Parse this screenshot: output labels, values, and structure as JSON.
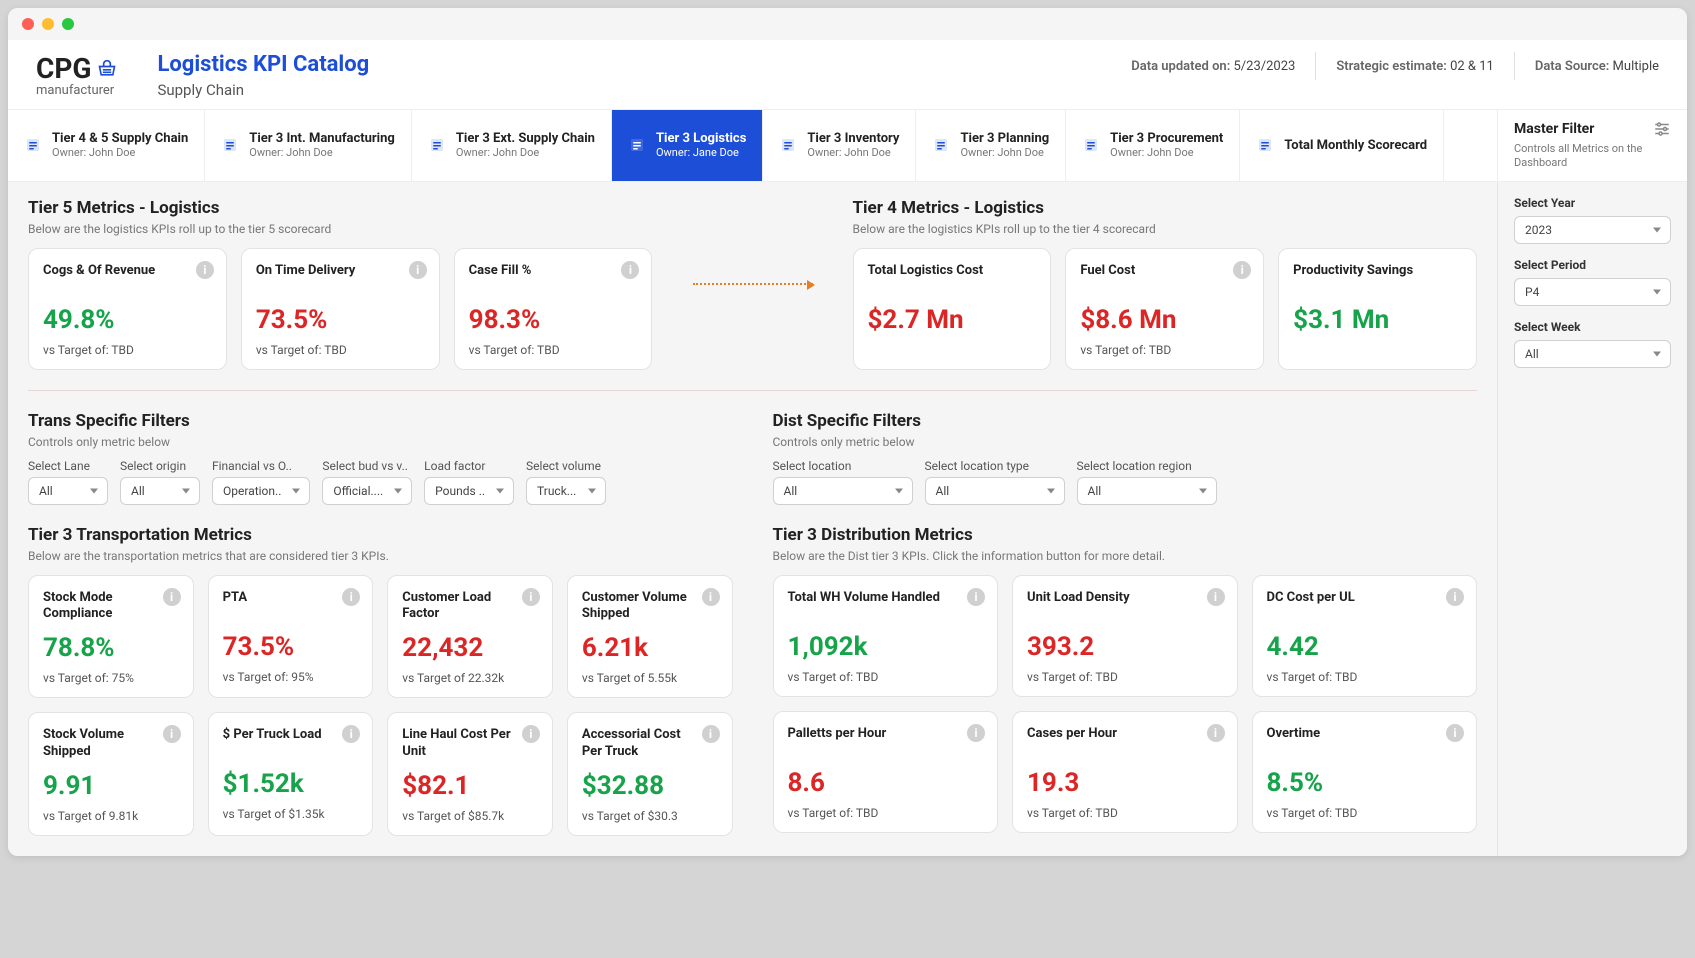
{
  "brand": {
    "name": "CPG",
    "sub": "manufacturer"
  },
  "header": {
    "title": "Logistics KPI Catalog",
    "subtitle": "Supply Chain",
    "updated_label": "Data updated on:",
    "updated_value": "5/23/2023",
    "estimate_label": "Strategic estimate:",
    "estimate_value": "02 & 11",
    "source_label": "Data Source:",
    "source_value": "Multiple"
  },
  "tabs": [
    {
      "label": "Tier 4 & 5 Supply Chain",
      "owner": "Owner: John Doe"
    },
    {
      "label": "Tier 3 Int. Manufacturing",
      "owner": "Owner: John Doe"
    },
    {
      "label": "Tier 3 Ext. Supply Chain",
      "owner": "Owner: John Doe"
    },
    {
      "label": "Tier 3 Logistics",
      "owner": "Owner: Jane Doe",
      "active": true
    },
    {
      "label": "Tier 3 Inventory",
      "owner": "Owner: John Doe"
    },
    {
      "label": "Tier 3 Planning",
      "owner": "Owner: John Doe"
    },
    {
      "label": "Tier 3 Procurement",
      "owner": "Owner: John Doe"
    },
    {
      "label": "Total Monthly Scorecard",
      "owner": ""
    }
  ],
  "master_filter": {
    "title": "Master Filter",
    "sub": "Controls all Metrics on the Dashboard",
    "year_label": "Select Year",
    "year_value": "2023",
    "period_label": "Select Period",
    "period_value": "P4",
    "week_label": "Select Week",
    "week_value": "All"
  },
  "tier5": {
    "title": "Tier 5 Metrics - Logistics",
    "sub": "Below are the logistics KPIs roll up to the tier 5 scorecard",
    "cards": [
      {
        "title": "Cogs & Of Revenue",
        "value": "49.8%",
        "color": "green",
        "sub": "vs Target of: TBD"
      },
      {
        "title": "On Time Delivery",
        "value": "73.5%",
        "color": "red",
        "sub": "vs Target of: TBD"
      },
      {
        "title": "Case Fill %",
        "value": "98.3%",
        "color": "red",
        "sub": "vs Target of: TBD"
      }
    ]
  },
  "tier4": {
    "title": "Tier 4 Metrics - Logistics",
    "sub": "Below are the logistics KPIs roll up to the tier 4 scorecard",
    "cards": [
      {
        "title": "Total Logistics Cost",
        "value": "$2.7 Mn",
        "color": "red",
        "sub": ""
      },
      {
        "title": "Fuel Cost",
        "value": "$8.6 Mn",
        "color": "red",
        "sub": "vs Target of: TBD"
      },
      {
        "title": "Productivity Savings",
        "value": "$3.1 Mn",
        "color": "green",
        "sub": ""
      }
    ]
  },
  "trans_filters": {
    "title": "Trans Specific Filters",
    "sub": "Controls only metric below",
    "items": [
      {
        "label": "Select Lane",
        "value": "All"
      },
      {
        "label": "Select origin",
        "value": "All"
      },
      {
        "label": "Financial vs O..",
        "value": "Operation.."
      },
      {
        "label": "Select bud vs v..",
        "value": "Official...."
      },
      {
        "label": "Load factor",
        "value": "Pounds .."
      },
      {
        "label": "Select volume",
        "value": "Truck..."
      }
    ]
  },
  "dist_filters": {
    "title": "Dist Specific Filters",
    "sub": "Controls only metric below",
    "items": [
      {
        "label": "Select location",
        "value": "All"
      },
      {
        "label": "Select location type",
        "value": "All"
      },
      {
        "label": "Select location region",
        "value": "All"
      }
    ]
  },
  "trans_metrics": {
    "title": "Tier 3 Transportation Metrics",
    "sub": "Below are the transportation metrics that are considered tier 3 KPIs.",
    "cards": [
      {
        "title": "Stock Mode Compliance",
        "value": "78.8%",
        "color": "green",
        "sub": "vs Target of: 75%"
      },
      {
        "title": "PTA",
        "value": "73.5%",
        "color": "red",
        "sub": "vs Target of: 95%"
      },
      {
        "title": "Customer Load Factor",
        "value": "22,432",
        "color": "red",
        "sub": "vs Target of 22.32k"
      },
      {
        "title": "Customer Volume Shipped",
        "value": "6.21k",
        "color": "red",
        "sub": "vs Target of 5.55k"
      },
      {
        "title": "Stock Volume Shipped",
        "value": "9.91",
        "color": "green",
        "sub": "vs Target of 9.81k"
      },
      {
        "title": "$ Per Truck Load",
        "value": "$1.52k",
        "color": "green",
        "sub": "vs Target of $1.35k"
      },
      {
        "title": "Line Haul Cost Per Unit",
        "value": "$82.1",
        "color": "red",
        "sub": "vs Target of $85.7k"
      },
      {
        "title": "Accessorial Cost Per Truck",
        "value": "$32.88",
        "color": "green",
        "sub": "vs Target of $30.3"
      }
    ]
  },
  "dist_metrics": {
    "title": "Tier 3 Distribution Metrics",
    "sub": "Below are the Dist tier 3 KPIs. Click the information button for more detail.",
    "cards": [
      {
        "title": "Total WH Volume Handled",
        "value": "1,092k",
        "color": "green",
        "sub": "vs Target of: TBD"
      },
      {
        "title": "Unit Load Density",
        "value": "393.2",
        "color": "red",
        "sub": "vs Target of: TBD"
      },
      {
        "title": "DC Cost per UL",
        "value": "4.42",
        "color": "green",
        "sub": "vs Target of: TBD"
      },
      {
        "title": "Palletts per Hour",
        "value": "8.6",
        "color": "red",
        "sub": "vs Target of: TBD"
      },
      {
        "title": "Cases per Hour",
        "value": "19.3",
        "color": "red",
        "sub": "vs Target of: TBD"
      },
      {
        "title": "Overtime",
        "value": "8.5%",
        "color": "green",
        "sub": "vs Target of: TBD"
      }
    ]
  },
  "colors": {
    "accent": "#1d4ed8",
    "green": "#16a34a",
    "red": "#dc2626",
    "bg": "#f5f5f5",
    "card_bg": "#ffffff",
    "border": "#e3e3e3"
  }
}
